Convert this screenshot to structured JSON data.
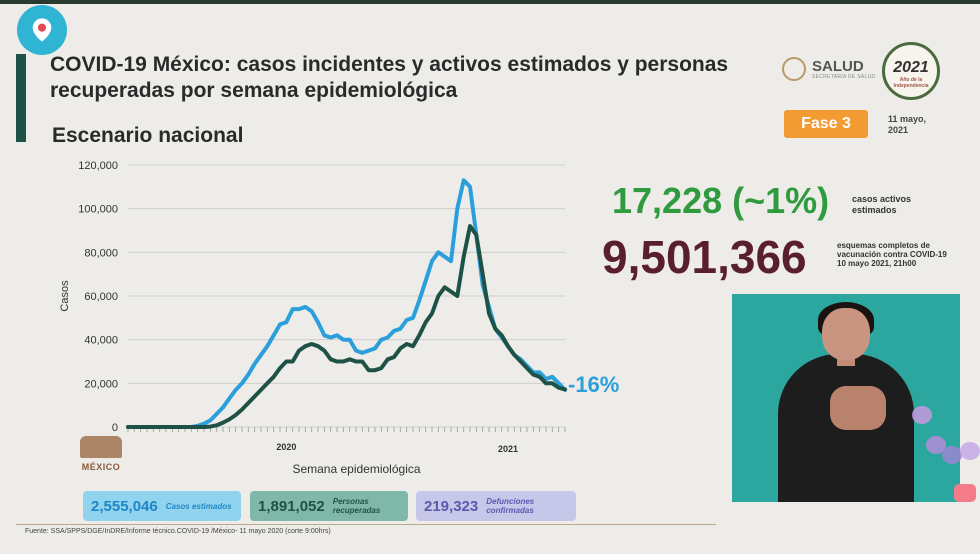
{
  "header": {
    "title": "COVID-19 México: casos incidentes y activos estimados y personas recuperadas por semana epidemiológica",
    "subtitle": "Escenario nacional",
    "salud_name": "SALUD",
    "salud_sub": "SECRETARÍA DE SALUD",
    "mx2021_year": "2021",
    "mx2021_sub": "Año de la Independencia",
    "fase": "Fase 3",
    "date": "11 mayo, 2021"
  },
  "stats": {
    "active_number": "17,228 (~1%)",
    "active_label": "casos activos estimados",
    "vaccine_number": "9,501,366",
    "vaccine_label": "esquemas completos de vacunación contra COVID-19",
    "vaccine_date": "10 mayo 2021, 21h00"
  },
  "change_label": "-16%",
  "legend": [
    {
      "number": "2,555,046",
      "label": "Casos estimados",
      "bg": "#8fd3ef",
      "fg": "#1f86c6"
    },
    {
      "number": "1,891,052",
      "label": "Personas recuperadas",
      "bg": "#7fb8a8",
      "fg": "#1f5247"
    },
    {
      "number": "219,323",
      "label": "Defunciones confirmadas",
      "bg": "#c7c7ea",
      "fg": "#5a5ab0"
    }
  ],
  "mexico_logo_text": "MÉXICO",
  "source": "Fuente: SSA/SPPS/DGE/InDRE/Informe técnico.COVID-19 /México- 11 mayo 2020 (corte 9:00hrs)",
  "colors": {
    "incident": "#2b9fdc",
    "active": "#1f5247",
    "grid": "#cfcfcf",
    "axis_text": "#333333"
  },
  "chart_data": {
    "type": "line",
    "xlabel": "Semana epidemiológica",
    "ylabel": "Casos",
    "ylim": [
      0,
      120000
    ],
    "yticks": [
      "0",
      "20,000",
      "40,000",
      "60,000",
      "80,000",
      "100,000",
      "120,000"
    ],
    "x_groups": [
      "2020",
      "2021"
    ],
    "x": [
      1,
      2,
      3,
      4,
      5,
      6,
      7,
      8,
      9,
      10,
      11,
      12,
      13,
      14,
      15,
      16,
      17,
      18,
      19,
      20,
      21,
      22,
      23,
      24,
      25,
      26,
      27,
      28,
      29,
      30,
      31,
      32,
      33,
      34,
      35,
      36,
      37,
      38,
      39,
      40,
      41,
      42,
      43,
      44,
      45,
      46,
      47,
      48,
      49,
      50,
      51,
      52,
      53,
      54,
      55,
      56,
      57,
      58,
      59,
      60,
      61,
      62,
      63,
      64,
      65,
      66,
      67,
      68,
      69,
      70
    ],
    "series": [
      {
        "name": "Casos estimados",
        "values": [
          0,
          0,
          0,
          0,
          0,
          0,
          0,
          0,
          0,
          0,
          0,
          500,
          1500,
          3000,
          6000,
          9000,
          13000,
          17000,
          20000,
          24000,
          29000,
          33000,
          37000,
          42000,
          47000,
          48000,
          54000,
          54000,
          55000,
          53000,
          48000,
          42000,
          41000,
          42000,
          40000,
          40000,
          35000,
          34000,
          35000,
          36000,
          40000,
          41000,
          44000,
          45000,
          49000,
          50000,
          58000,
          67000,
          76000,
          80000,
          78000,
          76000,
          100000,
          113000,
          110000,
          88000,
          65000,
          55000,
          45000,
          41000,
          37000,
          33000,
          31000,
          28000,
          25000,
          25000,
          22000,
          23000,
          20000,
          17000
        ]
      },
      {
        "name": "Personas recuperadas",
        "values": [
          0,
          0,
          0,
          0,
          0,
          0,
          0,
          0,
          0,
          0,
          0,
          0,
          0,
          200,
          800,
          2000,
          3500,
          5500,
          8000,
          11000,
          14000,
          17000,
          20000,
          23000,
          27000,
          30000,
          30000,
          35000,
          37000,
          38000,
          37000,
          35000,
          31000,
          30000,
          30000,
          31000,
          30000,
          30000,
          26000,
          26000,
          27000,
          31000,
          32000,
          36000,
          38000,
          37000,
          42000,
          48000,
          52000,
          60000,
          64000,
          62000,
          60000,
          78000,
          92000,
          88000,
          70000,
          52000,
          45000,
          42000,
          37000,
          33000,
          30000,
          27000,
          24000,
          23000,
          20000,
          20000,
          18000,
          17228
        ]
      }
    ]
  }
}
